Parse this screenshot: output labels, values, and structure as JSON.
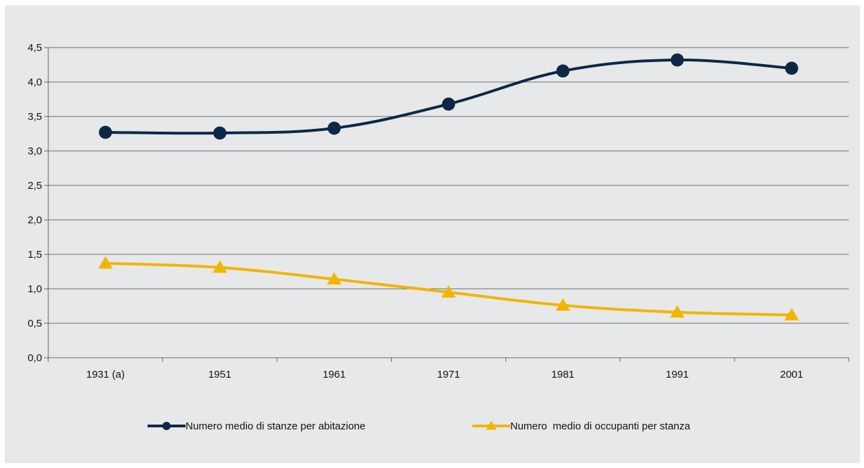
{
  "chart_data": {
    "type": "line",
    "title": "",
    "xlabel": "",
    "ylabel": "",
    "categories": [
      "1931 (a)",
      "1951",
      "1961",
      "1971",
      "1981",
      "1991",
      "2001"
    ],
    "ylim": [
      0,
      4.5
    ],
    "yticks": [
      "0,0",
      "0,5",
      "1,0",
      "1,5",
      "2,0",
      "2,5",
      "3,0",
      "3,5",
      "4,0",
      "4,5"
    ],
    "grid": "horizontal",
    "legend_position": "bottom",
    "series": [
      {
        "name": "Numero medio di stanze per abitazione",
        "values": [
          3.27,
          3.26,
          3.33,
          3.68,
          4.16,
          4.32,
          4.2
        ],
        "color": "#0d2847",
        "marker": "circle"
      },
      {
        "name": "Numero  medio di occupanti per stanza",
        "values": [
          1.37,
          1.31,
          1.14,
          0.95,
          0.76,
          0.66,
          0.62
        ],
        "color": "#f2b500",
        "marker": "triangle"
      }
    ]
  }
}
